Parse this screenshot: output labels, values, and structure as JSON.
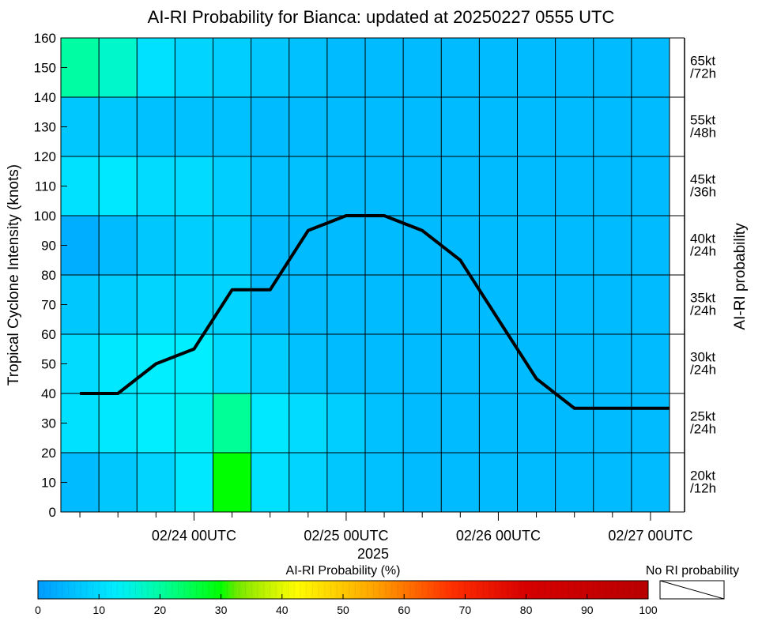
{
  "chart_data": {
    "type": "heatmap",
    "title": "AI-RI Probability for Bianca: updated at 20250227 0555 UTC",
    "ylabel": "Tropical Cyclone Intensity (knots)",
    "ylabel_right": "AI-RI probability",
    "xlabel": "2025",
    "ylim": [
      0,
      160
    ],
    "y_ticks": [
      "0",
      "10",
      "20",
      "30",
      "40",
      "50",
      "60",
      "70",
      "80",
      "90",
      "100",
      "110",
      "120",
      "130",
      "140",
      "150",
      "160"
    ],
    "x_tick_labels": [
      "02/24 00UTC",
      "02/25 00UTC",
      "02/26 00UTC",
      "02/27 00UTC"
    ],
    "right_labels": [
      {
        "kt": "20kt",
        "h": "/12h"
      },
      {
        "kt": "25kt",
        "h": "/24h"
      },
      {
        "kt": "30kt",
        "h": "/24h"
      },
      {
        "kt": "35kt",
        "h": "/24h"
      },
      {
        "kt": "40kt",
        "h": "/24h"
      },
      {
        "kt": "45kt",
        "h": "/36h"
      },
      {
        "kt": "55kt",
        "h": "/48h"
      },
      {
        "kt": "65kt",
        "h": "/72h"
      }
    ],
    "rows_bottom_to_top": [
      {
        "y0": 0,
        "y1": 20,
        "values": [
          5,
          7,
          9,
          12,
          30,
          11,
          9,
          7,
          6,
          5,
          5,
          5,
          5,
          5,
          5,
          5
        ]
      },
      {
        "y0": 20,
        "y1": 40,
        "values": [
          11,
          12,
          13,
          14,
          21,
          12,
          10,
          8,
          6,
          5,
          5,
          5,
          5,
          5,
          5,
          5
        ]
      },
      {
        "y0": 40,
        "y1": 60,
        "values": [
          10,
          12,
          13,
          13,
          10,
          8,
          6,
          5,
          5,
          5,
          5,
          5,
          5,
          5,
          5,
          5
        ]
      },
      {
        "y0": 60,
        "y1": 80,
        "values": [
          7,
          8,
          9,
          9,
          9,
          5,
          5,
          5,
          5,
          5,
          5,
          5,
          5,
          5,
          5,
          5
        ]
      },
      {
        "y0": 80,
        "y1": 100,
        "values": [
          3,
          5,
          7,
          8,
          8,
          5,
          5,
          5,
          5,
          5,
          5,
          5,
          5,
          5,
          5,
          5
        ]
      },
      {
        "y0": 100,
        "y1": 120,
        "values": [
          11,
          12,
          10,
          10,
          8,
          6,
          6,
          5,
          5,
          5,
          5,
          5,
          5,
          5,
          5,
          5
        ]
      },
      {
        "y0": 120,
        "y1": 140,
        "values": [
          7,
          7,
          6,
          6,
          6,
          5,
          5,
          5,
          5,
          5,
          5,
          5,
          5,
          5,
          5,
          5
        ]
      },
      {
        "y0": 140,
        "y1": 160,
        "values": [
          20,
          17,
          11,
          9,
          8,
          7,
          6,
          5,
          5,
          5,
          5,
          5,
          5,
          5,
          5,
          5
        ]
      }
    ],
    "series": [
      {
        "x_step": [
          0.5,
          1.5,
          2.5,
          3.5,
          4.5,
          5.5,
          6.5,
          7.5,
          8.5,
          9.5,
          10.5,
          11.5,
          12.5,
          13.5,
          14.5,
          15.5,
          16.0
        ],
        "values": [
          40,
          40,
          50,
          55,
          75,
          75,
          95,
          100,
          100,
          95,
          85,
          65,
          45,
          35,
          35,
          35,
          35
        ]
      }
    ],
    "colorbar": {
      "label": "AI-RI Probability (%)",
      "ticks": [
        "0",
        "10",
        "20",
        "30",
        "40",
        "50",
        "60",
        "70",
        "80",
        "90",
        "100"
      ],
      "no_ri_label": "No RI probability"
    }
  }
}
